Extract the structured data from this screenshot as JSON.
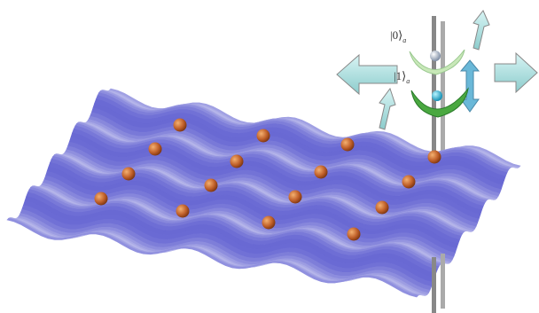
{
  "labels": [
    {
      "ket": "|0⟩",
      "sub": "a"
    },
    {
      "ket": "|1⟩",
      "sub": "a"
    }
  ]
}
